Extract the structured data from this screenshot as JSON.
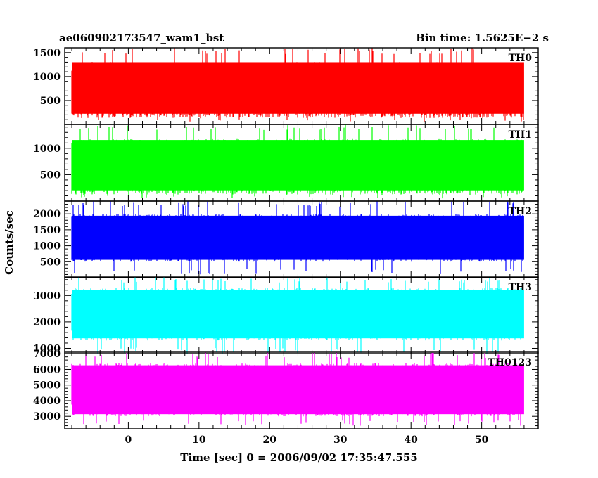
{
  "title_left": "ae060902173547_wam1_bst",
  "title_right": "Bin time: 1.5625E−2 s",
  "ylabel": "Counts/sec",
  "xlabel": "Time [sec] 0 = 2006/09/02 17:35:47.555",
  "chart_data": [
    {
      "type": "line",
      "name": "TH0",
      "color": "#ff0000",
      "xlim": [
        -9,
        58
      ],
      "ylim": [
        0,
        1600
      ],
      "x_ticks": [
        0,
        10,
        20,
        30,
        40,
        50
      ],
      "y_ticks": [
        500,
        1000,
        1500
      ],
      "x_range_data": [
        -8,
        56
      ],
      "mean": 720,
      "typical_low": 180,
      "typical_high": 1350,
      "min_peak": 60,
      "max_peak": 1600
    },
    {
      "type": "line",
      "name": "TH1",
      "color": "#00ff00",
      "xlim": [
        -9,
        58
      ],
      "ylim": [
        0,
        1450
      ],
      "x_ticks": [
        0,
        10,
        20,
        30,
        40,
        50
      ],
      "y_ticks": [
        500,
        1000
      ],
      "x_range_data": [
        -8,
        56
      ],
      "mean": 650,
      "typical_low": 150,
      "typical_high": 1200,
      "min_peak": 50,
      "max_peak": 1450
    },
    {
      "type": "line",
      "name": "TH2",
      "color": "#0000ff",
      "xlim": [
        -9,
        58
      ],
      "ylim": [
        0,
        2400
      ],
      "x_ticks": [
        0,
        10,
        20,
        30,
        40,
        50
      ],
      "y_ticks": [
        500,
        1000,
        1500,
        2000
      ],
      "x_range_data": [
        -8,
        56
      ],
      "mean": 1250,
      "typical_low": 500,
      "typical_high": 2000,
      "min_peak": 100,
      "max_peak": 2400
    },
    {
      "type": "line",
      "name": "TH3",
      "color": "#00ffff",
      "xlim": [
        -9,
        58
      ],
      "ylim": [
        800,
        3700
      ],
      "x_ticks": [
        0,
        10,
        20,
        30,
        40,
        50
      ],
      "y_ticks": [
        1000,
        2000,
        3000
      ],
      "x_range_data": [
        -8,
        56
      ],
      "mean": 2300,
      "typical_low": 1300,
      "typical_high": 3300,
      "min_peak": 800,
      "max_peak": 3700
    },
    {
      "type": "line",
      "name": "TH0123",
      "color": "#ff00ff",
      "xlim": [
        -9,
        58
      ],
      "ylim": [
        2200,
        7100
      ],
      "x_ticks": [
        0,
        10,
        20,
        30,
        40,
        50
      ],
      "y_ticks": [
        3000,
        4000,
        5000,
        6000,
        7000
      ],
      "x_range_data": [
        -8,
        56
      ],
      "mean": 4700,
      "typical_low": 3000,
      "typical_high": 6400,
      "min_peak": 2400,
      "max_peak": 7100
    }
  ]
}
